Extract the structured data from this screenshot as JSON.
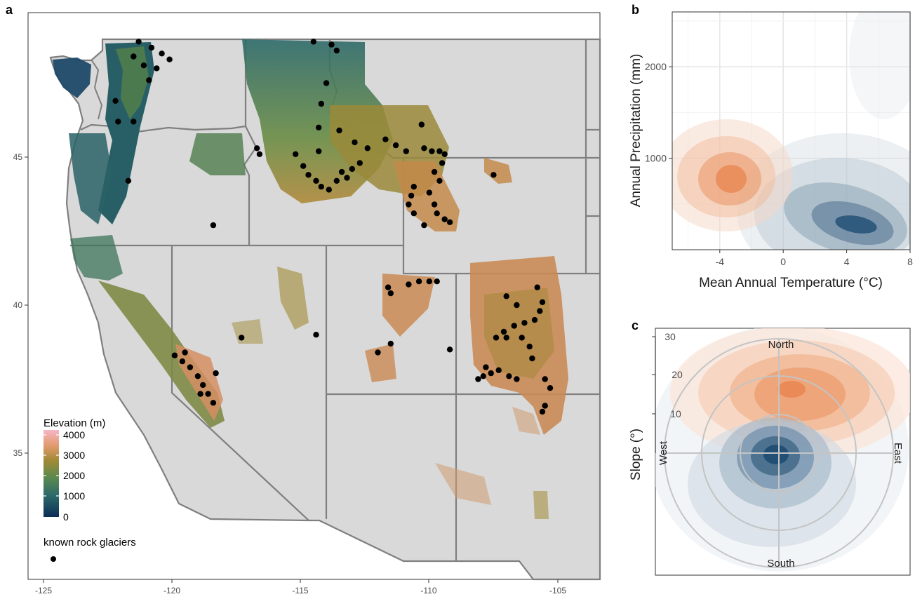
{
  "panels": {
    "a": "a",
    "b": "b",
    "c": "c"
  },
  "colors": {
    "map_fill": "#d9d9d9",
    "state_border": "#7f7f7f",
    "warm": "#e8854f",
    "cold": "#1f4e73",
    "point": "#000000"
  },
  "chart_data": [
    {
      "panel": "a",
      "type": "scatter",
      "xticks": [
        "-125",
        "-120",
        "-115",
        "-110",
        "-105"
      ],
      "yticks": [
        "45",
        "40",
        "35"
      ],
      "xlim": [
        -126,
        -103.5
      ],
      "ylim": [
        30.8,
        49.5
      ],
      "legend": {
        "elevation_title": "Elevation (m)",
        "elevation_ticks": [
          "4000",
          "3000",
          "2000",
          "1000",
          "0"
        ],
        "elevation_colors": [
          "#0b2d55",
          "#2d6a6a",
          "#5a8a4f",
          "#a08a35",
          "#e39a6e",
          "#f6b6c6"
        ],
        "points_label": "known rock glaciers"
      },
      "points": [
        {
          "x": -121.3,
          "y": 48.9
        },
        {
          "x": -120.8,
          "y": 48.7
        },
        {
          "x": -120.4,
          "y": 48.5
        },
        {
          "x": -121.5,
          "y": 48.4
        },
        {
          "x": -120.1,
          "y": 48.3
        },
        {
          "x": -121.1,
          "y": 48.1
        },
        {
          "x": -120.6,
          "y": 48.0
        },
        {
          "x": -120.9,
          "y": 47.6
        },
        {
          "x": -122.2,
          "y": 46.9
        },
        {
          "x": -121.5,
          "y": 46.2
        },
        {
          "x": -122.1,
          "y": 46.2
        },
        {
          "x": -121.7,
          "y": 44.2
        },
        {
          "x": -114.5,
          "y": 48.9
        },
        {
          "x": -113.8,
          "y": 48.8
        },
        {
          "x": -113.6,
          "y": 48.6
        },
        {
          "x": -114.0,
          "y": 47.5
        },
        {
          "x": -114.2,
          "y": 46.8
        },
        {
          "x": -114.3,
          "y": 46.0
        },
        {
          "x": -113.5,
          "y": 45.9
        },
        {
          "x": -116.7,
          "y": 45.3
        },
        {
          "x": -116.6,
          "y": 45.1
        },
        {
          "x": -115.2,
          "y": 45.1
        },
        {
          "x": -114.3,
          "y": 45.2
        },
        {
          "x": -114.9,
          "y": 44.7
        },
        {
          "x": -114.7,
          "y": 44.4
        },
        {
          "x": -114.4,
          "y": 44.2
        },
        {
          "x": -114.2,
          "y": 44.0
        },
        {
          "x": -113.9,
          "y": 43.9
        },
        {
          "x": -113.6,
          "y": 44.2
        },
        {
          "x": -113.4,
          "y": 44.5
        },
        {
          "x": -113.2,
          "y": 44.3
        },
        {
          "x": -113.0,
          "y": 44.6
        },
        {
          "x": -112.7,
          "y": 44.8
        },
        {
          "x": -112.4,
          "y": 45.3
        },
        {
          "x": -112.9,
          "y": 45.5
        },
        {
          "x": -111.7,
          "y": 45.6
        },
        {
          "x": -111.3,
          "y": 45.4
        },
        {
          "x": -110.9,
          "y": 45.2
        },
        {
          "x": -110.2,
          "y": 45.3
        },
        {
          "x": -109.9,
          "y": 45.2
        },
        {
          "x": -109.6,
          "y": 45.2
        },
        {
          "x": -109.4,
          "y": 45.1
        },
        {
          "x": -109.5,
          "y": 44.8
        },
        {
          "x": -109.8,
          "y": 44.5
        },
        {
          "x": -109.6,
          "y": 44.2
        },
        {
          "x": -110.0,
          "y": 43.8
        },
        {
          "x": -109.8,
          "y": 43.4
        },
        {
          "x": -109.7,
          "y": 43.1
        },
        {
          "x": -109.4,
          "y": 42.9
        },
        {
          "x": -109.2,
          "y": 42.8
        },
        {
          "x": -110.6,
          "y": 44.0
        },
        {
          "x": -110.7,
          "y": 43.7
        },
        {
          "x": -110.8,
          "y": 43.4
        },
        {
          "x": -110.6,
          "y": 43.1
        },
        {
          "x": -110.2,
          "y": 42.7
        },
        {
          "x": -110.3,
          "y": 46.1
        },
        {
          "x": -107.5,
          "y": 44.4
        },
        {
          "x": -118.4,
          "y": 42.7
        },
        {
          "x": -117.3,
          "y": 38.9
        },
        {
          "x": -114.4,
          "y": 39.0
        },
        {
          "x": -110.8,
          "y": 40.7
        },
        {
          "x": -110.4,
          "y": 40.8
        },
        {
          "x": -110.0,
          "y": 40.8
        },
        {
          "x": -109.7,
          "y": 40.8
        },
        {
          "x": -111.6,
          "y": 40.6
        },
        {
          "x": -111.5,
          "y": 40.4
        },
        {
          "x": -112.0,
          "y": 38.4
        },
        {
          "x": -111.5,
          "y": 38.7
        },
        {
          "x": -109.2,
          "y": 38.5
        },
        {
          "x": -119.9,
          "y": 38.3
        },
        {
          "x": -119.6,
          "y": 38.1
        },
        {
          "x": -119.3,
          "y": 37.9
        },
        {
          "x": -119.0,
          "y": 37.6
        },
        {
          "x": -118.8,
          "y": 37.3
        },
        {
          "x": -118.6,
          "y": 37.0
        },
        {
          "x": -118.4,
          "y": 36.7
        },
        {
          "x": -118.3,
          "y": 37.7
        },
        {
          "x": -119.5,
          "y": 38.4
        },
        {
          "x": -118.9,
          "y": 37.0
        },
        {
          "x": -107.0,
          "y": 40.3
        },
        {
          "x": -106.6,
          "y": 40.0
        },
        {
          "x": -105.8,
          "y": 40.6
        },
        {
          "x": -105.6,
          "y": 40.1
        },
        {
          "x": -105.7,
          "y": 39.8
        },
        {
          "x": -105.9,
          "y": 39.5
        },
        {
          "x": -106.3,
          "y": 39.4
        },
        {
          "x": -106.7,
          "y": 39.3
        },
        {
          "x": -107.1,
          "y": 39.1
        },
        {
          "x": -107.4,
          "y": 38.9
        },
        {
          "x": -107.0,
          "y": 38.9
        },
        {
          "x": -106.4,
          "y": 38.9
        },
        {
          "x": -106.1,
          "y": 38.6
        },
        {
          "x": -106.0,
          "y": 38.2
        },
        {
          "x": -107.8,
          "y": 37.9
        },
        {
          "x": -107.6,
          "y": 37.7
        },
        {
          "x": -107.3,
          "y": 37.8
        },
        {
          "x": -107.9,
          "y": 37.6
        },
        {
          "x": -108.1,
          "y": 37.5
        },
        {
          "x": -106.9,
          "y": 37.6
        },
        {
          "x": -106.6,
          "y": 37.5
        },
        {
          "x": -105.5,
          "y": 37.5
        },
        {
          "x": -105.3,
          "y": 37.2
        },
        {
          "x": -105.5,
          "y": 36.6
        },
        {
          "x": -105.6,
          "y": 36.4
        }
      ]
    },
    {
      "panel": "b",
      "type": "heatmap",
      "xlabel": "Mean Annual Temperature (°C)",
      "ylabel": "Annual Precipitation (mm)",
      "xticks": [
        "-4",
        "0",
        "4",
        "8"
      ],
      "yticks": [
        "2000",
        "1000"
      ],
      "xlim": [
        -7,
        8
      ],
      "ylim": [
        0,
        2600
      ],
      "series": [
        {
          "color": "#e8854f",
          "peak": {
            "x": -3.3,
            "y": 900
          }
        },
        {
          "color": "#1f4e73",
          "peak": {
            "x": 4.5,
            "y": 360
          }
        }
      ]
    },
    {
      "panel": "c",
      "type": "heatmap",
      "ylabel": "Slope (°)",
      "rticks": [
        "30",
        "20",
        "10"
      ],
      "directions": {
        "north": "North",
        "south": "South",
        "east": "East",
        "west": "West"
      },
      "rlim": [
        0,
        32
      ],
      "series": [
        {
          "color": "#e8854f",
          "peak": {
            "aspect_deg": 10,
            "slope": 18
          }
        },
        {
          "color": "#1f4e73",
          "peak": {
            "aspect_deg": 0,
            "slope": 0
          }
        }
      ]
    }
  ]
}
